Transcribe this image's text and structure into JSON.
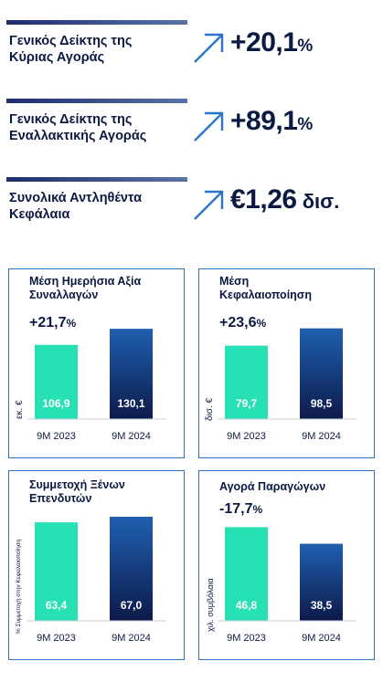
{
  "kpis": [
    {
      "label_line1": "Γενικός Δείκτης της",
      "label_line2": "Κύριας Αγοράς",
      "value": "+20,1",
      "unit": "%",
      "icon": "arrow-up-right-icon"
    },
    {
      "label_line1": "Γενικός Δείκτης της",
      "label_line2": "Εναλλακτικής Αγοράς",
      "value": "+89,1",
      "unit": "%",
      "icon": "arrow-up-right-icon"
    },
    {
      "label_line1": "Συνολικά Αντληθέντα",
      "label_line2": "Κεφάλαια",
      "value": "€1,26",
      "unit": " δισ.",
      "icon": "arrow-up-right-icon"
    }
  ],
  "colors": {
    "accent_bar": "#2b74c8",
    "bar_2023": "#27e1b4",
    "bar_2024_top": "#1f5fb0",
    "bar_2024_bottom": "#0d1a4a",
    "text": "#0b1a42"
  },
  "chart_data": [
    {
      "type": "bar",
      "title_line1": "Μέση Ημερήσια Αξία",
      "title_line2": "Συναλλαγών",
      "change": "+21,7",
      "change_unit": "%",
      "ylabel": "εκ. €",
      "categories": [
        "9M 2023",
        "9M 2024"
      ],
      "values": [
        106.9,
        130.1
      ],
      "value_labels": [
        "106,9",
        "130,1"
      ],
      "ylim": [
        0,
        150
      ]
    },
    {
      "type": "bar",
      "title_line1": "Μέση",
      "title_line2": "Κεφαλαιοποίηση",
      "change": "+23,6",
      "change_unit": "%",
      "ylabel": "δισ. €",
      "categories": [
        "9M 2023",
        "9M 2024"
      ],
      "values": [
        79.7,
        98.5
      ],
      "value_labels": [
        "79,7",
        "98,5"
      ],
      "ylim": [
        0,
        113
      ]
    },
    {
      "type": "bar",
      "title_line1": "Συμμετοχή Ξένων",
      "title_line2": "Επενδυτών",
      "change": "",
      "change_unit": "",
      "ylabel": "% Συμμετοχή στην Κεφαλαιοποίηση",
      "categories": [
        "9M 2023",
        "9M 2024"
      ],
      "values": [
        63.4,
        67.0
      ],
      "value_labels": [
        "63,4",
        "67,0"
      ],
      "ylim": [
        0,
        67
      ]
    },
    {
      "type": "bar",
      "title_line1": "Αγορά Παραγώγων",
      "title_line2": "",
      "change": "-17,7",
      "change_unit": "%",
      "ylabel": "χιλ. συμβόλαια",
      "categories": [
        "9M 2023",
        "9M 2024"
      ],
      "values": [
        46.8,
        38.5
      ],
      "value_labels": [
        "46,8",
        "38,5"
      ],
      "ylim": [
        0,
        52
      ]
    }
  ]
}
